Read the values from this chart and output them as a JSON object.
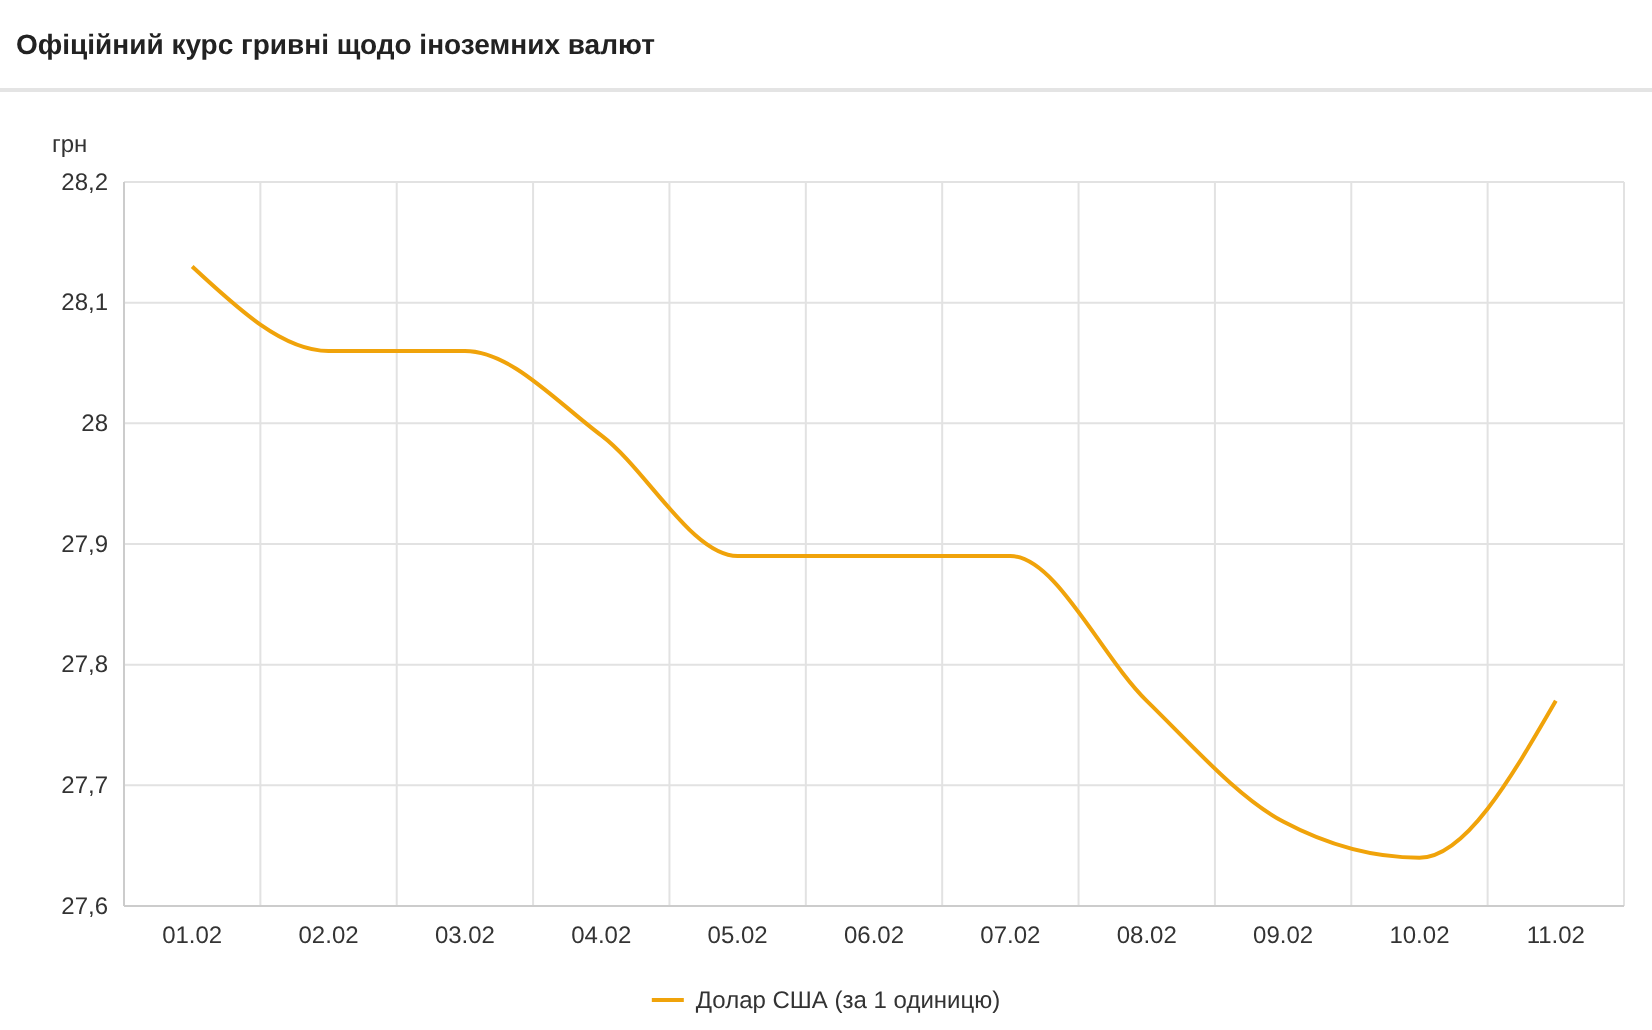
{
  "chart_data": {
    "type": "line",
    "title": "Офіційний курс гривні щодо іноземних валют",
    "ylabel": "грн",
    "categories": [
      "01.02",
      "02.02",
      "03.02",
      "04.02",
      "05.02",
      "06.02",
      "07.02",
      "08.02",
      "09.02",
      "10.02",
      "11.02"
    ],
    "series": [
      {
        "name": "Долар США (за 1 одиницю)",
        "color": "#f0a30a",
        "values": [
          28.13,
          28.06,
          28.06,
          27.99,
          27.89,
          27.89,
          27.89,
          27.77,
          27.67,
          27.64,
          27.77
        ]
      }
    ],
    "ylim": [
      27.6,
      28.2
    ],
    "yticks": [
      {
        "value": 27.6,
        "label": "27,6"
      },
      {
        "value": 27.7,
        "label": "27,7"
      },
      {
        "value": 27.8,
        "label": "27,8"
      },
      {
        "value": 27.9,
        "label": "27,9"
      },
      28,
      {
        "value": 28.1,
        "label": "28,1"
      },
      {
        "value": 28.2,
        "label": "28,2"
      }
    ],
    "grid": true,
    "legend": "bottom",
    "marker": "none",
    "line_style": "solid"
  }
}
